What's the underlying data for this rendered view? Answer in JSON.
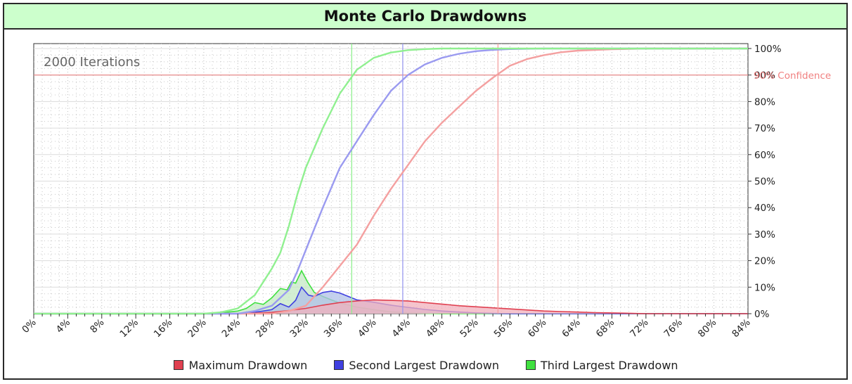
{
  "chart_data": {
    "type": "area",
    "title": "Monte Carlo Drawdowns",
    "annotation": "2000 Iterations",
    "confidence_label": "90% Confidence",
    "confidence_level": 90,
    "xlim": [
      0,
      84
    ],
    "ylim": [
      0,
      100
    ],
    "x_ticks": [
      "0%",
      "4%",
      "8%",
      "12%",
      "16%",
      "20%",
      "24%",
      "28%",
      "32%",
      "36%",
      "40%",
      "44%",
      "48%",
      "52%",
      "56%",
      "60%",
      "64%",
      "68%",
      "72%",
      "76%",
      "80%",
      "84%"
    ],
    "y_ticks": [
      "0%",
      "10%",
      "20%",
      "30%",
      "40%",
      "50%",
      "60%",
      "70%",
      "80%",
      "90%",
      "100%"
    ],
    "grid": true,
    "legend_position": "bottom",
    "series": [
      {
        "name": "Maximum Drawdown",
        "color": "#e04050",
        "cumulative_color": "#f4a0a0",
        "fill_color": "#f2b0bc",
        "confidence_x": 54.6,
        "distribution": [
          [
            0,
            0
          ],
          [
            24,
            0
          ],
          [
            26,
            0.2
          ],
          [
            28,
            0.5
          ],
          [
            30,
            1.2
          ],
          [
            32,
            2.0
          ],
          [
            34,
            3.2
          ],
          [
            36,
            4.2
          ],
          [
            38,
            4.8
          ],
          [
            40,
            5.2
          ],
          [
            42,
            5.0
          ],
          [
            44,
            4.8
          ],
          [
            46,
            4.2
          ],
          [
            48,
            3.6
          ],
          [
            50,
            3.0
          ],
          [
            52,
            2.6
          ],
          [
            54,
            2.2
          ],
          [
            56,
            1.8
          ],
          [
            58,
            1.4
          ],
          [
            60,
            1.0
          ],
          [
            62,
            0.8
          ],
          [
            64,
            0.6
          ],
          [
            66,
            0.4
          ],
          [
            68,
            0.3
          ],
          [
            70,
            0.15
          ],
          [
            72,
            0
          ],
          [
            84,
            0
          ]
        ],
        "cumulative": [
          [
            0,
            0
          ],
          [
            28,
            0
          ],
          [
            30,
            1
          ],
          [
            32,
            3
          ],
          [
            34,
            10
          ],
          [
            36,
            18
          ],
          [
            38,
            26
          ],
          [
            40,
            37
          ],
          [
            42,
            47
          ],
          [
            44,
            56
          ],
          [
            46,
            65
          ],
          [
            48,
            72
          ],
          [
            50,
            78
          ],
          [
            52,
            84
          ],
          [
            54,
            89
          ],
          [
            56,
            93.5
          ],
          [
            58,
            96
          ],
          [
            60,
            97.5
          ],
          [
            62,
            98.6
          ],
          [
            64,
            99.2
          ],
          [
            68,
            99.7
          ],
          [
            72,
            100
          ],
          [
            84,
            100
          ]
        ]
      },
      {
        "name": "Second Largest Drawdown",
        "color": "#4040e0",
        "cumulative_color": "#9a9af0",
        "fill_color": "#b0c0e8",
        "confidence_x": 43.4,
        "distribution": [
          [
            0,
            0
          ],
          [
            24,
            0
          ],
          [
            26,
            0.5
          ],
          [
            28,
            1.5
          ],
          [
            29,
            3.8
          ],
          [
            30,
            2.5
          ],
          [
            30.8,
            5.0
          ],
          [
            31.5,
            10.0
          ],
          [
            32.3,
            7.0
          ],
          [
            33,
            6.5
          ],
          [
            34,
            8.0
          ],
          [
            35,
            8.5
          ],
          [
            36,
            7.8
          ],
          [
            37,
            6.5
          ],
          [
            38,
            5.2
          ],
          [
            40,
            4.3
          ],
          [
            42,
            3.2
          ],
          [
            44,
            2.4
          ],
          [
            46,
            1.6
          ],
          [
            48,
            1.0
          ],
          [
            50,
            0.6
          ],
          [
            52,
            0.3
          ],
          [
            54,
            0.1
          ],
          [
            56,
            0
          ],
          [
            84,
            0
          ]
        ],
        "cumulative": [
          [
            0,
            0
          ],
          [
            24,
            0
          ],
          [
            26,
            1
          ],
          [
            28,
            3
          ],
          [
            30,
            9
          ],
          [
            31,
            16
          ],
          [
            32,
            24
          ],
          [
            34,
            40
          ],
          [
            36,
            55
          ],
          [
            38,
            65
          ],
          [
            40,
            75
          ],
          [
            42,
            84
          ],
          [
            44,
            90
          ],
          [
            46,
            94
          ],
          [
            48,
            96.5
          ],
          [
            50,
            98
          ],
          [
            52,
            99
          ],
          [
            54,
            99.5
          ],
          [
            56,
            99.8
          ],
          [
            60,
            100
          ],
          [
            84,
            100
          ]
        ]
      },
      {
        "name": "Third Largest Drawdown",
        "color": "#40e040",
        "cumulative_color": "#90f090",
        "fill_color": "#c4e8c4",
        "confidence_x": 37.4,
        "distribution": [
          [
            0,
            0
          ],
          [
            20,
            0
          ],
          [
            22,
            0.3
          ],
          [
            24,
            1.0
          ],
          [
            25,
            2.0
          ],
          [
            26,
            4.2
          ],
          [
            27,
            3.5
          ],
          [
            28,
            6.0
          ],
          [
            29,
            9.5
          ],
          [
            29.8,
            9.0
          ],
          [
            30.3,
            12.0
          ],
          [
            30.8,
            11.5
          ],
          [
            31.5,
            16.2
          ],
          [
            32.2,
            12.0
          ],
          [
            33,
            8.0
          ],
          [
            34,
            6.5
          ],
          [
            35,
            5.2
          ],
          [
            36,
            4.0
          ],
          [
            38,
            2.5
          ],
          [
            40,
            1.5
          ],
          [
            42,
            0.7
          ],
          [
            44,
            0.3
          ],
          [
            46,
            0.1
          ],
          [
            48,
            0
          ],
          [
            84,
            0
          ]
        ],
        "cumulative": [
          [
            0,
            0
          ],
          [
            20,
            0
          ],
          [
            22,
            0.5
          ],
          [
            24,
            2
          ],
          [
            26,
            7
          ],
          [
            28,
            17
          ],
          [
            29,
            23
          ],
          [
            30,
            33
          ],
          [
            31,
            45
          ],
          [
            32,
            55
          ],
          [
            34,
            70
          ],
          [
            36,
            83
          ],
          [
            38,
            92
          ],
          [
            40,
            96.5
          ],
          [
            42,
            98.5
          ],
          [
            44,
            99.4
          ],
          [
            46,
            99.8
          ],
          [
            48,
            100
          ],
          [
            84,
            100
          ]
        ]
      }
    ]
  }
}
